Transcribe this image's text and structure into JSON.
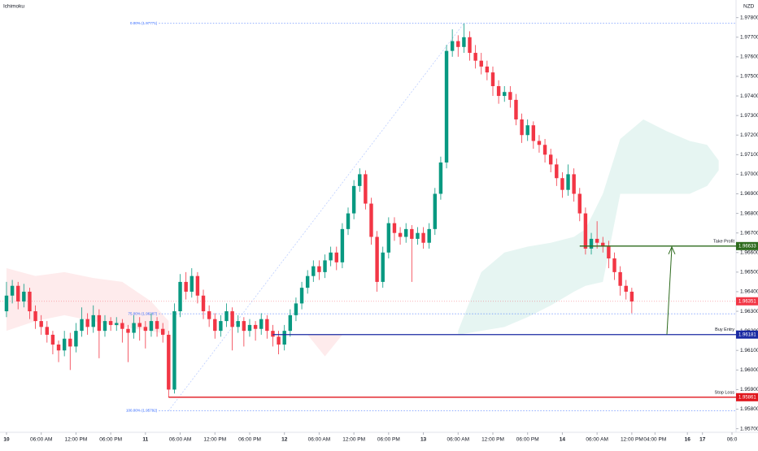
{
  "chart_data": {
    "type": "candlestick",
    "title": "Ichimoku",
    "currency": "NZD",
    "up_color": "#089981",
    "down_color": "#f23645",
    "xlim": [
      -1.12,
      126
    ],
    "ylim": [
      1.9569,
      1.9789
    ],
    "yticks": [
      {
        "value": 1.978,
        "label": "1.97800"
      },
      {
        "value": 1.977,
        "label": "1.97700"
      },
      {
        "value": 1.976,
        "label": "1.97600"
      },
      {
        "value": 1.975,
        "label": "1.97500"
      },
      {
        "value": 1.974,
        "label": "1.97400"
      },
      {
        "value": 1.973,
        "label": "1.97300"
      },
      {
        "value": 1.972,
        "label": "1.97200"
      },
      {
        "value": 1.971,
        "label": "1.97100"
      },
      {
        "value": 1.97,
        "label": "1.97000"
      },
      {
        "value": 1.969,
        "label": "1.96900"
      },
      {
        "value": 1.968,
        "label": "1.96800"
      },
      {
        "value": 1.967,
        "label": "1.96700"
      },
      {
        "value": 1.966,
        "label": "1.96600"
      },
      {
        "value": 1.965,
        "label": "1.96500"
      },
      {
        "value": 1.964,
        "label": "1.96400"
      },
      {
        "value": 1.963,
        "label": "1.96300"
      },
      {
        "value": 1.962,
        "label": "1.96200"
      },
      {
        "value": 1.961,
        "label": "1.96100"
      },
      {
        "value": 1.96,
        "label": "1.96000"
      },
      {
        "value": 1.959,
        "label": "1.95900"
      },
      {
        "value": 1.958,
        "label": "1.95800"
      },
      {
        "value": 1.957,
        "label": "1.95700"
      }
    ],
    "xticks": [
      {
        "value": 0,
        "label": "10"
      },
      {
        "value": 6,
        "label": "06:00 AM"
      },
      {
        "value": 12,
        "label": "12:00 PM"
      },
      {
        "value": 18,
        "label": "06:00 PM"
      },
      {
        "value": 24,
        "label": "11"
      },
      {
        "value": 30,
        "label": "06:00 AM"
      },
      {
        "value": 36,
        "label": "12:00 PM"
      },
      {
        "value": 42,
        "label": "06:00 PM"
      },
      {
        "value": 48,
        "label": "12"
      },
      {
        "value": 54,
        "label": "06:00 AM"
      },
      {
        "value": 60,
        "label": "12:00 PM"
      },
      {
        "value": 66,
        "label": "06:00 PM"
      },
      {
        "value": 72,
        "label": "13"
      },
      {
        "value": 78,
        "label": "06:00 AM"
      },
      {
        "value": 84,
        "label": "12:00 PM"
      },
      {
        "value": 90,
        "label": "06:00 PM"
      },
      {
        "value": 96,
        "label": "14"
      },
      {
        "value": 102,
        "label": "06:00 AM"
      },
      {
        "value": 108,
        "label": "12:00 PM"
      },
      {
        "value": 112,
        "label": "04:00 PM"
      },
      {
        "value": 117.6,
        "label": "16"
      },
      {
        "value": 120.2,
        "label": "17"
      },
      {
        "value": 125.3,
        "label": "06:0"
      }
    ],
    "candles": [
      [
        1.963,
        1.9645,
        1.9627,
        1.9638
      ],
      [
        1.9638,
        1.9646,
        1.9634,
        1.9643
      ],
      [
        1.9643,
        1.9645,
        1.9631,
        1.9635
      ],
      [
        1.9635,
        1.9644,
        1.9632,
        1.964
      ],
      [
        1.964,
        1.9642,
        1.9626,
        1.963
      ],
      [
        1.963,
        1.9633,
        1.9621,
        1.9625
      ],
      [
        1.9625,
        1.9628,
        1.9618,
        1.9622
      ],
      [
        1.9622,
        1.9625,
        1.9614,
        1.9618
      ],
      [
        1.9618,
        1.962,
        1.9608,
        1.9613
      ],
      [
        1.9613,
        1.9615,
        1.9604,
        1.961
      ],
      [
        1.961,
        1.962,
        1.9607,
        1.9616
      ],
      [
        1.9616,
        1.9619,
        1.96,
        1.9612
      ],
      [
        1.9612,
        1.9624,
        1.9609,
        1.962
      ],
      [
        1.962,
        1.9632,
        1.9617,
        1.9626
      ],
      [
        1.9626,
        1.9629,
        1.9618,
        1.9622
      ],
      [
        1.9622,
        1.9633,
        1.9619,
        1.9628
      ],
      [
        1.9628,
        1.9631,
        1.9606,
        1.962
      ],
      [
        1.962,
        1.9628,
        1.9617,
        1.9625
      ],
      [
        1.9625,
        1.9627,
        1.962,
        1.9623
      ],
      [
        1.9623,
        1.9627,
        1.962,
        1.9624
      ],
      [
        1.9624,
        1.9626,
        1.9614,
        1.9621
      ],
      [
        1.9621,
        1.9623,
        1.9604,
        1.9619
      ],
      [
        1.9619,
        1.9628,
        1.9616,
        1.9624
      ],
      [
        1.9624,
        1.9627,
        1.9615,
        1.9622
      ],
      [
        1.9622,
        1.9625,
        1.9611,
        1.962
      ],
      [
        1.962,
        1.9629,
        1.9617,
        1.9625
      ],
      [
        1.9625,
        1.9627,
        1.9617,
        1.9621
      ],
      [
        1.9621,
        1.9624,
        1.9614,
        1.9618
      ],
      [
        1.9618,
        1.962,
        1.9586,
        1.959
      ],
      [
        1.959,
        1.9634,
        1.9588,
        1.963
      ],
      [
        1.963,
        1.9649,
        1.9627,
        1.9645
      ],
      [
        1.9645,
        1.965,
        1.9636,
        1.964
      ],
      [
        1.964,
        1.9652,
        1.9637,
        1.9648
      ],
      [
        1.9648,
        1.965,
        1.9634,
        1.9638
      ],
      [
        1.9638,
        1.9641,
        1.9626,
        1.963
      ],
      [
        1.963,
        1.9633,
        1.9622,
        1.9626
      ],
      [
        1.9626,
        1.9629,
        1.9616,
        1.962
      ],
      [
        1.962,
        1.9628,
        1.9617,
        1.9625
      ],
      [
        1.9625,
        1.9634,
        1.9622,
        1.963
      ],
      [
        1.963,
        1.9632,
        1.961,
        1.9622
      ],
      [
        1.9622,
        1.9628,
        1.9619,
        1.9625
      ],
      [
        1.9625,
        1.9627,
        1.9612,
        1.962
      ],
      [
        1.962,
        1.9626,
        1.9617,
        1.9623
      ],
      [
        1.9623,
        1.9625,
        1.9615,
        1.9621
      ],
      [
        1.9621,
        1.9629,
        1.9618,
        1.9626
      ],
      [
        1.9626,
        1.9628,
        1.9616,
        1.962
      ],
      [
        1.962,
        1.9623,
        1.9612,
        1.9617
      ],
      [
        1.9617,
        1.962,
        1.9608,
        1.9613
      ],
      [
        1.9613,
        1.9623,
        1.961,
        1.962
      ],
      [
        1.962,
        1.9631,
        1.9617,
        1.9628
      ],
      [
        1.9628,
        1.9637,
        1.9625,
        1.9634
      ],
      [
        1.9634,
        1.9645,
        1.9631,
        1.9642
      ],
      [
        1.9642,
        1.9651,
        1.9639,
        1.9648
      ],
      [
        1.9648,
        1.9656,
        1.9645,
        1.9653
      ],
      [
        1.9653,
        1.9656,
        1.9646,
        1.965
      ],
      [
        1.965,
        1.9659,
        1.9647,
        1.9656
      ],
      [
        1.9656,
        1.9663,
        1.9653,
        1.966
      ],
      [
        1.966,
        1.9663,
        1.9651,
        1.9655
      ],
      [
        1.9655,
        1.9675,
        1.9652,
        1.9672
      ],
      [
        1.9672,
        1.9683,
        1.9669,
        1.968
      ],
      [
        1.968,
        1.9697,
        1.9677,
        1.9694
      ],
      [
        1.9694,
        1.9703,
        1.9691,
        1.97
      ],
      [
        1.97,
        1.9702,
        1.9682,
        1.9685
      ],
      [
        1.9685,
        1.9688,
        1.9664,
        1.9668
      ],
      [
        1.9668,
        1.9671,
        1.964,
        1.9645
      ],
      [
        1.9645,
        1.9663,
        1.9642,
        1.966
      ],
      [
        1.966,
        1.9678,
        1.9657,
        1.9675
      ],
      [
        1.9675,
        1.9678,
        1.9666,
        1.967
      ],
      [
        1.967,
        1.9673,
        1.9664,
        1.9668
      ],
      [
        1.9668,
        1.9675,
        1.9665,
        1.9672
      ],
      [
        1.9672,
        1.9674,
        1.9645,
        1.9667
      ],
      [
        1.9667,
        1.9673,
        1.9664,
        1.967
      ],
      [
        1.967,
        1.9673,
        1.9662,
        1.9665
      ],
      [
        1.9665,
        1.9675,
        1.9662,
        1.9672
      ],
      [
        1.9672,
        1.9693,
        1.9669,
        1.969
      ],
      [
        1.969,
        1.9709,
        1.9687,
        1.9706
      ],
      [
        1.9706,
        1.9766,
        1.9703,
        1.9763
      ],
      [
        1.9763,
        1.9774,
        1.976,
        1.9768
      ],
      [
        1.9768,
        1.9771,
        1.976,
        1.9765
      ],
      [
        1.9765,
        1.9777,
        1.9762,
        1.977
      ],
      [
        1.977,
        1.9773,
        1.9758,
        1.9762
      ],
      [
        1.9762,
        1.9766,
        1.9754,
        1.9758
      ],
      [
        1.9758,
        1.9762,
        1.9751,
        1.9755
      ],
      [
        1.9755,
        1.9758,
        1.9748,
        1.9752
      ],
      [
        1.9752,
        1.9755,
        1.974,
        1.9745
      ],
      [
        1.9745,
        1.9748,
        1.9736,
        1.974
      ],
      [
        1.974,
        1.9745,
        1.9737,
        1.9742
      ],
      [
        1.9742,
        1.9745,
        1.9734,
        1.9738
      ],
      [
        1.9738,
        1.9741,
        1.9725,
        1.9728
      ],
      [
        1.9728,
        1.9731,
        1.9716,
        1.972
      ],
      [
        1.972,
        1.9728,
        1.9717,
        1.9725
      ],
      [
        1.9725,
        1.9727,
        1.9713,
        1.9717
      ],
      [
        1.9717,
        1.972,
        1.9711,
        1.9715
      ],
      [
        1.9715,
        1.9718,
        1.9706,
        1.971
      ],
      [
        1.971,
        1.9713,
        1.9701,
        1.9705
      ],
      [
        1.9705,
        1.9708,
        1.9694,
        1.9698
      ],
      [
        1.9698,
        1.9701,
        1.9688,
        1.9692
      ],
      [
        1.9692,
        1.9705,
        1.9689,
        1.97
      ],
      [
        1.97,
        1.9703,
        1.9686,
        1.969
      ],
      [
        1.969,
        1.9693,
        1.9676,
        1.968
      ],
      [
        1.968,
        1.9683,
        1.9659,
        1.9662
      ],
      [
        1.9662,
        1.967,
        1.9659,
        1.9667
      ],
      [
        1.9667,
        1.9676,
        1.9662,
        1.9665
      ],
      [
        1.9665,
        1.9668,
        1.966,
        1.9663
      ],
      [
        1.9663,
        1.9666,
        1.9652,
        1.9657
      ],
      [
        1.9657,
        1.966,
        1.9646,
        1.965
      ],
      [
        1.965,
        1.9653,
        1.9638,
        1.9643
      ],
      [
        1.9643,
        1.9646,
        1.9636,
        1.964
      ],
      [
        1.964,
        1.9642,
        1.9629,
        1.9635
      ]
    ],
    "cloud": [
      {
        "color": "#f23645",
        "x": [
          0,
          5,
          10,
          15,
          20,
          25,
          28
        ],
        "upper": [
          1.9652,
          1.9648,
          1.965,
          1.9647,
          1.9645,
          1.9635,
          1.9625
        ],
        "lower": [
          1.962,
          1.9625,
          1.9628,
          1.9625,
          1.9622,
          1.962,
          1.9618
        ]
      },
      {
        "color": "#f23645",
        "x": [
          52,
          55,
          58
        ],
        "upper": [
          1.9618,
          1.9618,
          1.9618
        ],
        "lower": [
          1.9618,
          1.9607,
          1.9618
        ]
      },
      {
        "color": "#089981",
        "x": [
          78,
          82,
          86,
          90,
          94,
          98,
          100,
          103,
          106,
          110,
          114,
          118,
          121,
          123
        ],
        "upper": [
          1.962,
          1.965,
          1.966,
          1.9663,
          1.9665,
          1.9668,
          1.9672,
          1.969,
          1.9718,
          1.9728,
          1.9722,
          1.9717,
          1.9715,
          1.9707
        ],
        "lower": [
          1.9618,
          1.962,
          1.9622,
          1.9627,
          1.9633,
          1.964,
          1.9643,
          1.9645,
          1.969,
          1.969,
          1.969,
          1.969,
          1.9694,
          1.9702
        ]
      }
    ],
    "fib": {
      "start": 28,
      "end": 79,
      "color": "#2962ff",
      "levels": [
        {
          "value": 1.97771,
          "label": "0.00% (1.97771)"
        },
        {
          "value": 1.96287,
          "label": "75.00% (1.96287)"
        },
        {
          "value": 1.95792,
          "label": "100.00% (1.95792)"
        }
      ]
    },
    "levels": [
      {
        "name": "Take Profit",
        "value": 1.96633,
        "from": 99,
        "color": "#2e6b1e"
      },
      {
        "name": "Buy Entry",
        "value": 1.96181,
        "from": 46,
        "color": "#1a2aa3"
      },
      {
        "name": "Stop Loss",
        "value": 1.95861,
        "from": 28,
        "color": "#e0161d"
      }
    ],
    "last_price": 1.96351
  }
}
